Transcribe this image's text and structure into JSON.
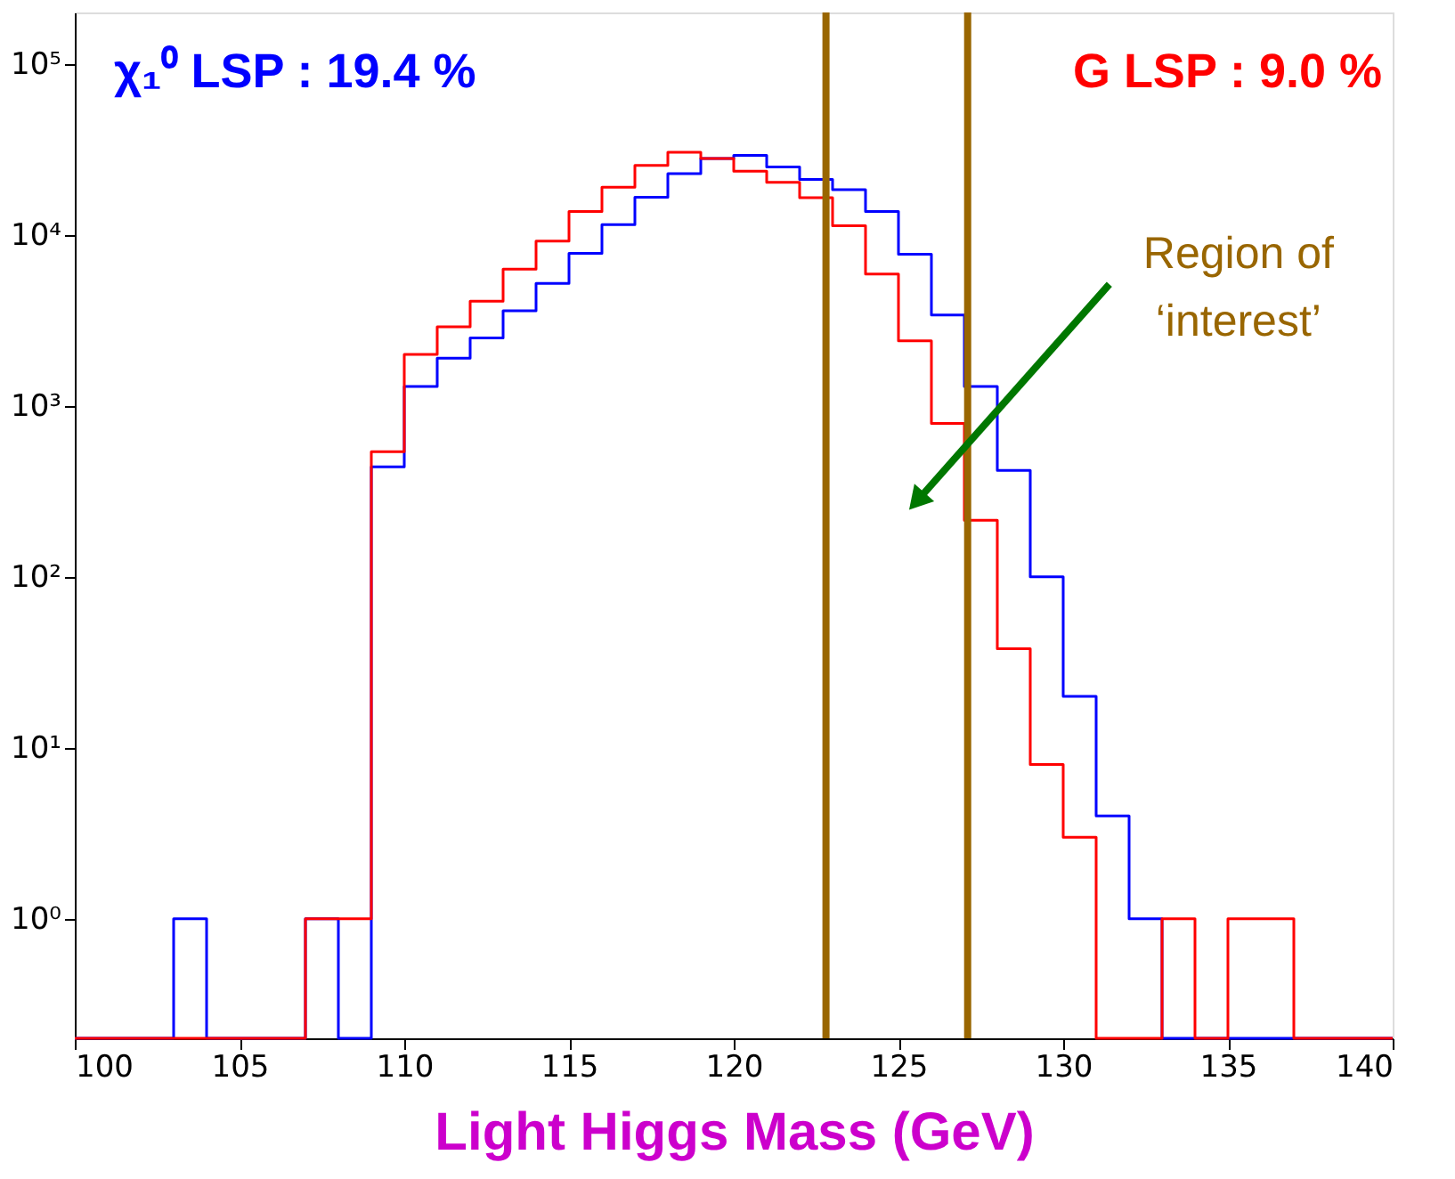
{
  "chart_data": {
    "type": "histogram",
    "xlabel": "Light Higgs Mass  (GeV)",
    "log": "y",
    "grid": false,
    "bins": [
      100,
      101,
      102,
      103,
      104,
      105,
      106,
      107,
      108,
      109,
      110,
      111,
      112,
      113,
      114,
      115,
      116,
      117,
      118,
      119,
      120,
      121,
      122,
      123,
      124,
      125,
      126,
      127,
      128,
      129,
      130,
      131,
      132,
      133,
      134,
      135,
      136,
      137,
      138,
      139,
      140
    ],
    "series": [
      {
        "name": "χ₁⁰  LSP : 19.4 %",
        "color": "#0000ff",
        "values": [
          null,
          null,
          null,
          1,
          null,
          null,
          null,
          1,
          null,
          440,
          1300,
          1900,
          2500,
          3600,
          5200,
          7800,
          11500,
          16600,
          22800,
          28000,
          29200,
          25000,
          21100,
          18400,
          13700,
          7700,
          3400,
          1300,
          420,
          100,
          20,
          4,
          1,
          null,
          null,
          null,
          null,
          null,
          null,
          null
        ]
      },
      {
        "name": "G  LSP :  9.0 %",
        "color": "#ff0000",
        "values": [
          null,
          null,
          null,
          null,
          null,
          null,
          null,
          1,
          1,
          540,
          2000,
          2900,
          4100,
          6300,
          9200,
          13700,
          19000,
          25500,
          30400,
          28000,
          23600,
          20300,
          16500,
          11300,
          5900,
          2400,
          790,
          214,
          38,
          8,
          3,
          null,
          null,
          1,
          null,
          1,
          1,
          null,
          null,
          null
        ]
      }
    ],
    "xlim": [
      100,
      140
    ],
    "xticks": [
      100,
      105,
      110,
      115,
      120,
      125,
      130,
      135,
      140
    ],
    "ylim": [
      0.2,
      200000
    ],
    "yticks": [
      {
        "value": 1,
        "label": "10⁰"
      },
      {
        "value": 10,
        "label": "10¹"
      },
      {
        "value": 100,
        "label": "10²"
      },
      {
        "value": 1000,
        "label": "10³"
      },
      {
        "value": 10000,
        "label": "10⁴"
      },
      {
        "value": 100000,
        "label": "10⁵"
      }
    ],
    "ref_lines": [
      {
        "axis": "x",
        "value": 122.8,
        "color": "#996600"
      },
      {
        "axis": "x",
        "value": 127.1,
        "color": "#996600"
      }
    ],
    "annotations": [
      "Region of\n‘interest’"
    ]
  }
}
